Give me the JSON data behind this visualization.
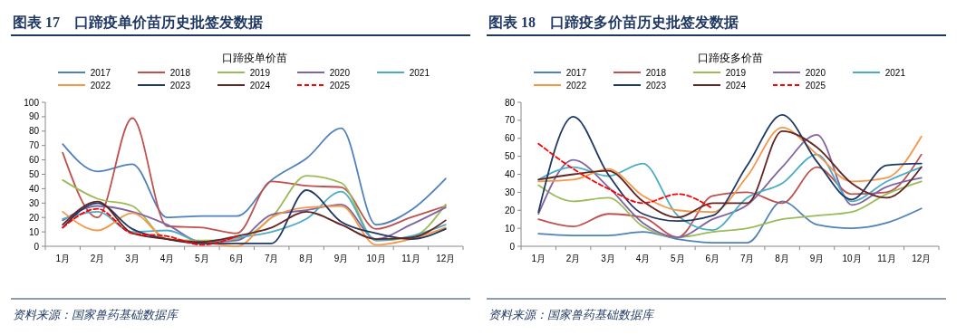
{
  "chart_data": [
    {
      "type": "line",
      "title": "图表 17　口蹄疫单价苗历史批签发数据",
      "subtitle": "口蹄疫单价苗",
      "annotations": [
        "资料来源：国家兽药基础数据库"
      ],
      "categories": [
        "1月",
        "2月",
        "3月",
        "4月",
        "5月",
        "6月",
        "7月",
        "8月",
        "9月",
        "10月",
        "11月",
        "12月"
      ],
      "ylim": [
        0,
        100
      ],
      "yticks": [
        0,
        10,
        20,
        30,
        40,
        50,
        60,
        70,
        80,
        90,
        100
      ],
      "grid": false,
      "legend": "top",
      "marker": "none",
      "line_style": "solid",
      "series": [
        {
          "name": "2017",
          "color": "#4f81bd",
          "values": [
            71,
            52,
            57,
            20,
            21,
            21,
            46,
            61,
            82,
            15,
            25,
            47
          ]
        },
        {
          "name": "2018",
          "color": "#c0504d",
          "values": [
            65,
            20,
            89,
            14,
            13,
            9,
            45,
            42,
            41,
            12,
            20,
            28
          ]
        },
        {
          "name": "2019",
          "color": "#9bbb59",
          "values": [
            46,
            33,
            28,
            5,
            4,
            5,
            20,
            49,
            44,
            4,
            6,
            29
          ]
        },
        {
          "name": "2020",
          "color": "#8064a2",
          "values": [
            18,
            28,
            24,
            15,
            3,
            4,
            22,
            25,
            29,
            5,
            15,
            27
          ]
        },
        {
          "name": "2021",
          "color": "#4bacc6",
          "values": [
            19,
            24,
            10,
            11,
            3,
            6,
            10,
            19,
            38,
            4,
            7,
            15
          ]
        },
        {
          "name": "2022",
          "color": "#f79646",
          "values": [
            24,
            11,
            23,
            5,
            3,
            0,
            20,
            27,
            28,
            1,
            5,
            13
          ]
        },
        {
          "name": "2023",
          "color": "#1f3864",
          "values": [
            13,
            30,
            12,
            5,
            2,
            2,
            2,
            39,
            17,
            9,
            5,
            12
          ]
        },
        {
          "name": "2024",
          "color": "#632523",
          "values": [
            15,
            31,
            9,
            5,
            3,
            7,
            13,
            24,
            15,
            5,
            6,
            18
          ]
        },
        {
          "name": "2025",
          "color": "#ff0000",
          "line_style": "dashed",
          "values": [
            13,
            26,
            9,
            7,
            1,
            7,
            null,
            null,
            null,
            null,
            null,
            null
          ]
        }
      ]
    },
    {
      "type": "line",
      "title": "图表 18　口蹄疫多价苗历史批签发数据",
      "subtitle": "口蹄疫多价苗",
      "annotations": [
        "资料来源：国家兽药基础数据库"
      ],
      "categories": [
        "1月",
        "2月",
        "3月",
        "4月",
        "5月",
        "6月",
        "7月",
        "8月",
        "9月",
        "10月",
        "11月",
        "12月"
      ],
      "ylim": [
        0,
        80
      ],
      "yticks": [
        0,
        10,
        20,
        30,
        40,
        50,
        60,
        70,
        80
      ],
      "grid": false,
      "legend": "top",
      "marker": "none",
      "line_style": "solid",
      "series": [
        {
          "name": "2017",
          "color": "#4f81bd",
          "values": [
            7,
            6,
            6,
            8,
            4,
            2,
            2,
            25,
            12,
            10,
            13,
            21
          ]
        },
        {
          "name": "2018",
          "color": "#c0504d",
          "values": [
            15,
            11,
            18,
            16,
            5,
            28,
            30,
            24,
            44,
            29,
            30,
            51
          ]
        },
        {
          "name": "2019",
          "color": "#9bbb59",
          "values": [
            34,
            25,
            27,
            11,
            5,
            8,
            10,
            15,
            17,
            19,
            29,
            36
          ]
        },
        {
          "name": "2020",
          "color": "#8064a2",
          "values": [
            18,
            48,
            33,
            13,
            5,
            15,
            23,
            44,
            62,
            23,
            33,
            38
          ]
        },
        {
          "name": "2021",
          "color": "#4bacc6",
          "values": [
            37,
            44,
            39,
            46,
            17,
            9,
            27,
            35,
            51,
            25,
            36,
            44
          ]
        },
        {
          "name": "2022",
          "color": "#f79646",
          "values": [
            36,
            37,
            43,
            28,
            20,
            19,
            39,
            66,
            51,
            36,
            38,
            61
          ]
        },
        {
          "name": "2023",
          "color": "#1f3864",
          "values": [
            19,
            72,
            40,
            18,
            14,
            17,
            45,
            73,
            47,
            26,
            45,
            46
          ]
        },
        {
          "name": "2024",
          "color": "#632523",
          "values": [
            37,
            40,
            42,
            25,
            16,
            24,
            24,
            64,
            55,
            35,
            27,
            44
          ]
        },
        {
          "name": "2025",
          "color": "#ff0000",
          "line_style": "dashed",
          "values": [
            57,
            43,
            32,
            24,
            29,
            21,
            null,
            null,
            null,
            null,
            null,
            null
          ]
        }
      ]
    }
  ]
}
